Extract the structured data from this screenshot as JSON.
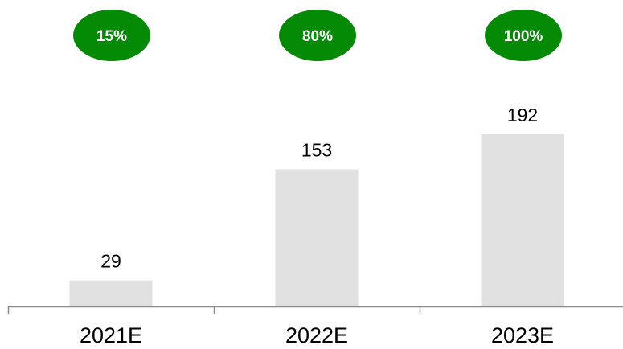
{
  "chart_data": {
    "type": "bar",
    "categories": [
      "2021E",
      "2022E",
      "2023E"
    ],
    "values": [
      29,
      153,
      192
    ],
    "data_labels": [
      "29",
      "153",
      "192"
    ],
    "percentages": [
      "15%",
      "80%",
      "100%"
    ],
    "title": "",
    "xlabel": "",
    "ylabel": "",
    "ylim": [
      0,
      192
    ],
    "grid": false,
    "legend": "none",
    "colors": {
      "bar": "#e1e1e1",
      "badge": "#058a05",
      "badge_text": "#ffffff",
      "axis": "#8c8c8c"
    }
  }
}
